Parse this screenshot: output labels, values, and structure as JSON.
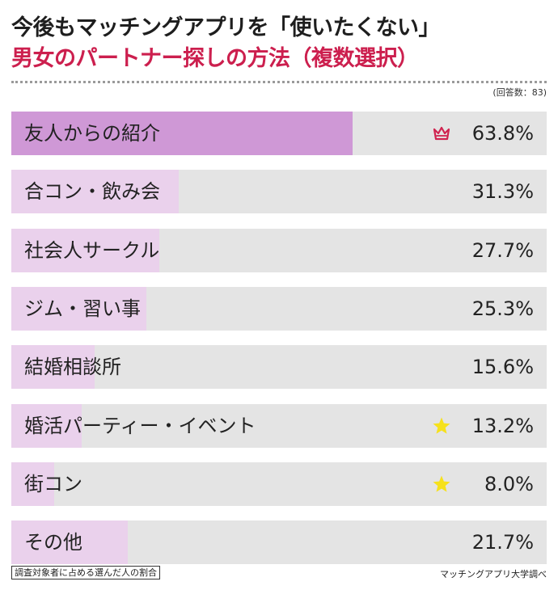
{
  "title_line1": "今後もマッチングアプリを「使いたくない」",
  "title_line2": "男女のパートナー探しの方法（複数選択）",
  "respondents": "(回答数：83)",
  "footnote": "調査対象者に占める選んだ人の割合",
  "source": "マッチングアプリ大学調べ",
  "colors": {
    "top_bar": "#cf98d6",
    "bar": "#ead1ec",
    "track": "#e4e4e4",
    "title_accent": "#cc1f4e",
    "crown": "#d0234f",
    "star": "#f6e11c"
  },
  "chart_data": {
    "type": "bar",
    "orientation": "horizontal",
    "unit": "%",
    "xlim": [
      0,
      100
    ],
    "categories": [
      "友人からの紹介",
      "合コン・飲み会",
      "社会人サークル",
      "ジム・習い事",
      "結婚相談所",
      "婚活パーティー・イベント",
      "街コン",
      "その他"
    ],
    "values": [
      63.8,
      31.3,
      27.7,
      25.3,
      15.6,
      13.2,
      8.0,
      21.7
    ],
    "value_labels": [
      "63.8%",
      "31.3%",
      "27.7%",
      "25.3%",
      "15.6%",
      "13.2%",
      "8.0%",
      "21.7%"
    ],
    "markers": [
      "crown-icon",
      "",
      "",
      "",
      "",
      "star-icon",
      "star-icon",
      ""
    ]
  }
}
